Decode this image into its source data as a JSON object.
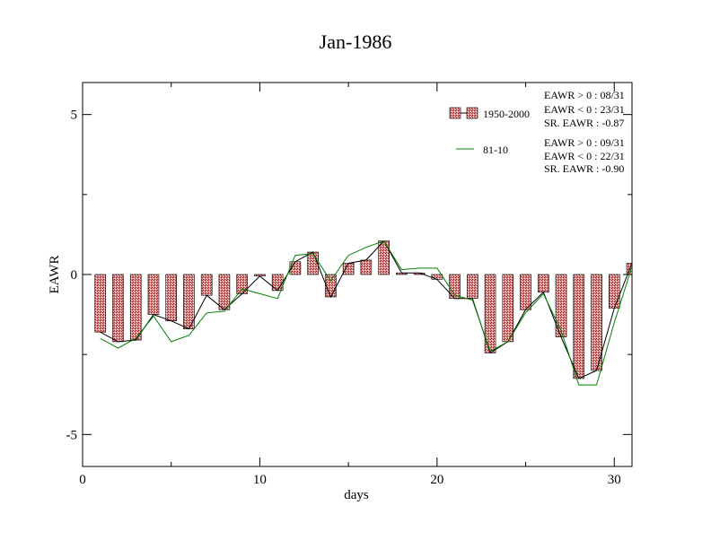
{
  "chart_data": {
    "type": "bar",
    "title": "Jan-1986",
    "xlabel": "days",
    "ylabel": "EAWR",
    "xlim": [
      0,
      31
    ],
    "ylim": [
      -6,
      6
    ],
    "xticks": [
      0,
      10,
      20,
      30
    ],
    "yticks": [
      5,
      0,
      -5
    ],
    "ytick_labels": [
      "5",
      "0",
      "-5"
    ],
    "grid": false,
    "legend_position": "top-right",
    "x": [
      1,
      2,
      3,
      4,
      5,
      6,
      7,
      8,
      9,
      10,
      11,
      12,
      13,
      14,
      15,
      16,
      17,
      18,
      19,
      20,
      21,
      22,
      23,
      24,
      25,
      26,
      27,
      28,
      29,
      30,
      31
    ],
    "series": [
      {
        "name": "1950-2000",
        "kind": "bar",
        "color": "#e88a8a",
        "values": [
          -1.8,
          -2.1,
          -2.05,
          -1.25,
          -1.45,
          -1.7,
          -0.65,
          -1.1,
          -0.6,
          -0.05,
          -0.5,
          0.4,
          0.7,
          -0.7,
          0.35,
          0.45,
          1.05,
          0.05,
          0.05,
          -0.15,
          -0.75,
          -0.75,
          -2.45,
          -2.1,
          -1.1,
          -0.55,
          -1.95,
          -3.25,
          -3.0,
          -1.05,
          0.35
        ]
      },
      {
        "name": "81-10",
        "kind": "line",
        "color": "#008000",
        "values": [
          -2.0,
          -2.3,
          -2.0,
          -1.3,
          -2.1,
          -1.9,
          -1.2,
          -1.15,
          -0.45,
          -0.6,
          -0.75,
          0.6,
          0.65,
          -0.2,
          0.6,
          0.85,
          1.05,
          0.15,
          0.2,
          0.2,
          -0.65,
          -0.8,
          -2.4,
          -2.1,
          -1.2,
          -0.6,
          -1.75,
          -3.45,
          -3.45,
          -1.5,
          0.25
        ]
      }
    ],
    "legend": [
      {
        "label": "1950-2000",
        "stats": [
          "EAWR > 0 : 08/31",
          "EAWR < 0 : 23/31",
          "SR. EAWR : -0.87"
        ]
      },
      {
        "label": "81-10",
        "stats": [
          "EAWR > 0 : 09/31",
          "EAWR < 0 : 22/31",
          "SR. EAWR : -0.90"
        ]
      }
    ]
  }
}
